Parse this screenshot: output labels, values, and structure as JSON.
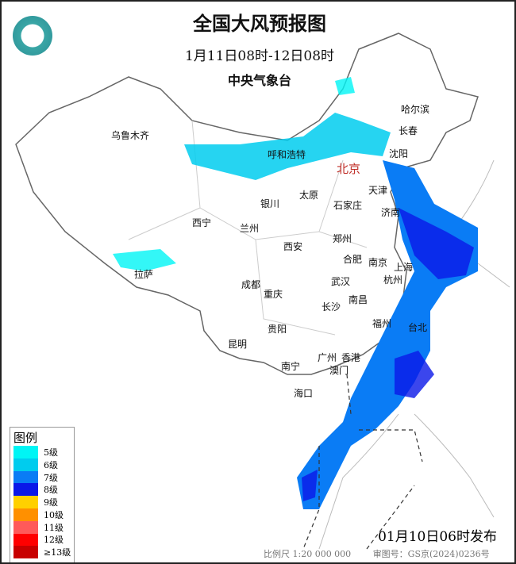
{
  "header": {
    "title": "全国大风预报图",
    "period": "1月11日08时-12日08时",
    "issuer": "中央气象台"
  },
  "cities": [
    {
      "name": "乌鲁木齐"
    },
    {
      "name": "哈尔滨"
    },
    {
      "name": "长春"
    },
    {
      "name": "沈阳"
    },
    {
      "name": "北京",
      "capital": true
    },
    {
      "name": "呼和浩特"
    },
    {
      "name": "天津"
    },
    {
      "name": "太原"
    },
    {
      "name": "石家庄"
    },
    {
      "name": "济南"
    },
    {
      "name": "银川"
    },
    {
      "name": "西宁"
    },
    {
      "name": "兰州"
    },
    {
      "name": "西安"
    },
    {
      "name": "郑州"
    },
    {
      "name": "合肥"
    },
    {
      "name": "南京"
    },
    {
      "name": "上海"
    },
    {
      "name": "杭州"
    },
    {
      "name": "拉萨"
    },
    {
      "name": "成都"
    },
    {
      "name": "武汉"
    },
    {
      "name": "重庆"
    },
    {
      "name": "南昌"
    },
    {
      "name": "长沙"
    },
    {
      "name": "福州"
    },
    {
      "name": "台北"
    },
    {
      "name": "贵阳"
    },
    {
      "name": "昆明"
    },
    {
      "name": "广州"
    },
    {
      "name": "香港"
    },
    {
      "name": "澳门"
    },
    {
      "name": "南宁"
    },
    {
      "name": "海口"
    }
  ],
  "legend": {
    "title": "图例",
    "items": [
      {
        "label": "5级",
        "color": "#00f5f5"
      },
      {
        "label": "6级",
        "color": "#00ccee"
      },
      {
        "label": "7级",
        "color": "#0a7cf5"
      },
      {
        "label": "8级",
        "color": "#0a18e8"
      },
      {
        "label": "9级",
        "color": "#ffd000"
      },
      {
        "label": "10级",
        "color": "#ff9000"
      },
      {
        "label": "11级",
        "color": "#ff5a5a"
      },
      {
        "label": "12级",
        "color": "#ff0000"
      },
      {
        "label": "≥13级",
        "color": "#c80000"
      }
    ]
  },
  "issued": "01月10日06时发布",
  "footer": {
    "scale": "比例尺 1:20 000 000",
    "approval": "审图号：GS京(2024)0236号"
  }
}
